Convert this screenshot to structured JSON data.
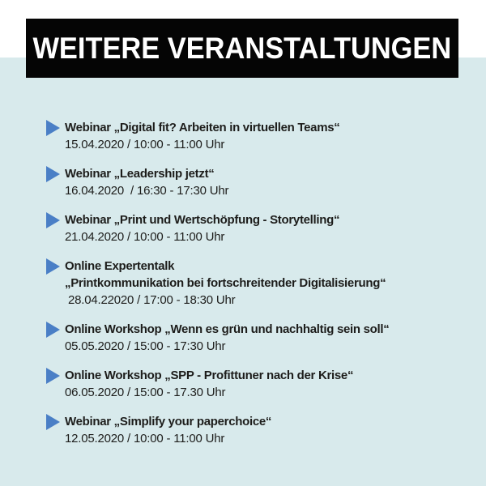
{
  "colors": {
    "background": "#d8eaec",
    "top_strip": "#ffffff",
    "banner_bg": "#050505",
    "banner_text": "#ffffff",
    "text": "#1d1d1b",
    "bullet": "#4a7fc6"
  },
  "banner": {
    "title": "WEITERE VERANSTALTUNGEN"
  },
  "icons": {
    "bullet": "triangle-right-icon"
  },
  "events": [
    {
      "title_lines": [
        "Webinar „Digital fit? Arbeiten in virtuellen Teams“"
      ],
      "datetime": "15.04.2020 / 10:00 - 11:00 Uhr"
    },
    {
      "title_lines": [
        "Webinar „Leadership jetzt“"
      ],
      "datetime": "16.04.2020  / 16:30 - 17:30 Uhr"
    },
    {
      "title_lines": [
        "Webinar „Print und Wertschöpfung - Storytelling“"
      ],
      "datetime": "21.04.2020 / 10:00 - 11:00 Uhr"
    },
    {
      "title_lines": [
        "Online Expertentalk",
        "„Printkommunikation bei fortschreitender Digitalisierung“"
      ],
      "datetime": " 28.04.22020 / 17:00 - 18:30 Uhr"
    },
    {
      "title_lines": [
        "Online Workshop „Wenn es grün und nachhaltig sein soll“"
      ],
      "datetime": "05.05.2020 / 15:00 - 17:30 Uhr"
    },
    {
      "title_lines": [
        "Online Workshop „SPP - Profittuner nach der Krise“"
      ],
      "datetime": "06.05.2020 / 15:00 - 17.30 Uhr"
    },
    {
      "title_lines": [
        "Webinar „Simplify your paperchoice“"
      ],
      "datetime": "12.05.2020 / 10:00 - 11:00 Uhr"
    }
  ]
}
